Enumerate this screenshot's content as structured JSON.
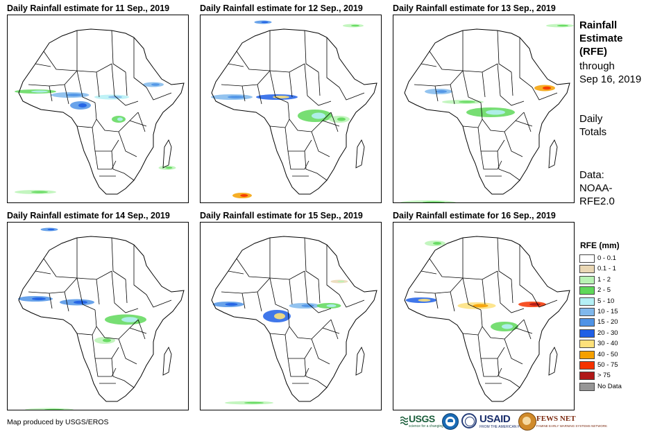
{
  "panels": [
    {
      "title": "Daily Rainfall estimate for 11 Sep., 2019"
    },
    {
      "title": "Daily Rainfall estimate for 12 Sep., 2019"
    },
    {
      "title": "Daily Rainfall estimate for 13 Sep., 2019"
    },
    {
      "title": "Daily Rainfall estimate for 14 Sep., 2019"
    },
    {
      "title": "Daily Rainfall estimate for 15 Sep., 2019"
    },
    {
      "title": "Daily Rainfall estimate for 16 Sep., 2019"
    }
  ],
  "sidebar": {
    "title_line1": "Rainfall",
    "title_line2": "Estimate",
    "title_line3": "(RFE)",
    "through_label": "through",
    "through_date": "Sep 16, 2019",
    "totals_line1": "Daily",
    "totals_line2": "Totals",
    "data_line1": "Data:",
    "data_line2": "NOAA-",
    "data_line3": "RFE2.0"
  },
  "legend": {
    "title": "RFE (mm)",
    "items": [
      {
        "label": "0 - 0.1",
        "color": "#ffffff"
      },
      {
        "label": "0.1 - 1",
        "color": "#ead7b4"
      },
      {
        "label": "1 - 2",
        "color": "#b9f3b4"
      },
      {
        "label": "2 - 5",
        "color": "#5fd85a"
      },
      {
        "label": "5 - 10",
        "color": "#b4f0f5"
      },
      {
        "label": "10 - 15",
        "color": "#80b8ec"
      },
      {
        "label": "15 - 20",
        "color": "#4f93e6"
      },
      {
        "label": "20 - 30",
        "color": "#1f5fe6"
      },
      {
        "label": "30 - 40",
        "color": "#fde17a"
      },
      {
        "label": "40 - 50",
        "color": "#f5a000"
      },
      {
        "label": "50 - 75",
        "color": "#f53200"
      },
      {
        "label": "> 75",
        "color": "#b01818"
      },
      {
        "label": "No Data",
        "color": "#969696"
      }
    ]
  },
  "credit": "Map produced by USGS/EROS",
  "logos": {
    "usgs": "USGS",
    "usgs_tagline": "science for a changing world",
    "usaid": "USAID",
    "usaid_tagline": "FROM THE AMERICAN PEOPLE",
    "fews": "FEWS NET",
    "fews_tagline": "FAMINE EARLY WARNING SYSTEMS NETWORK"
  }
}
